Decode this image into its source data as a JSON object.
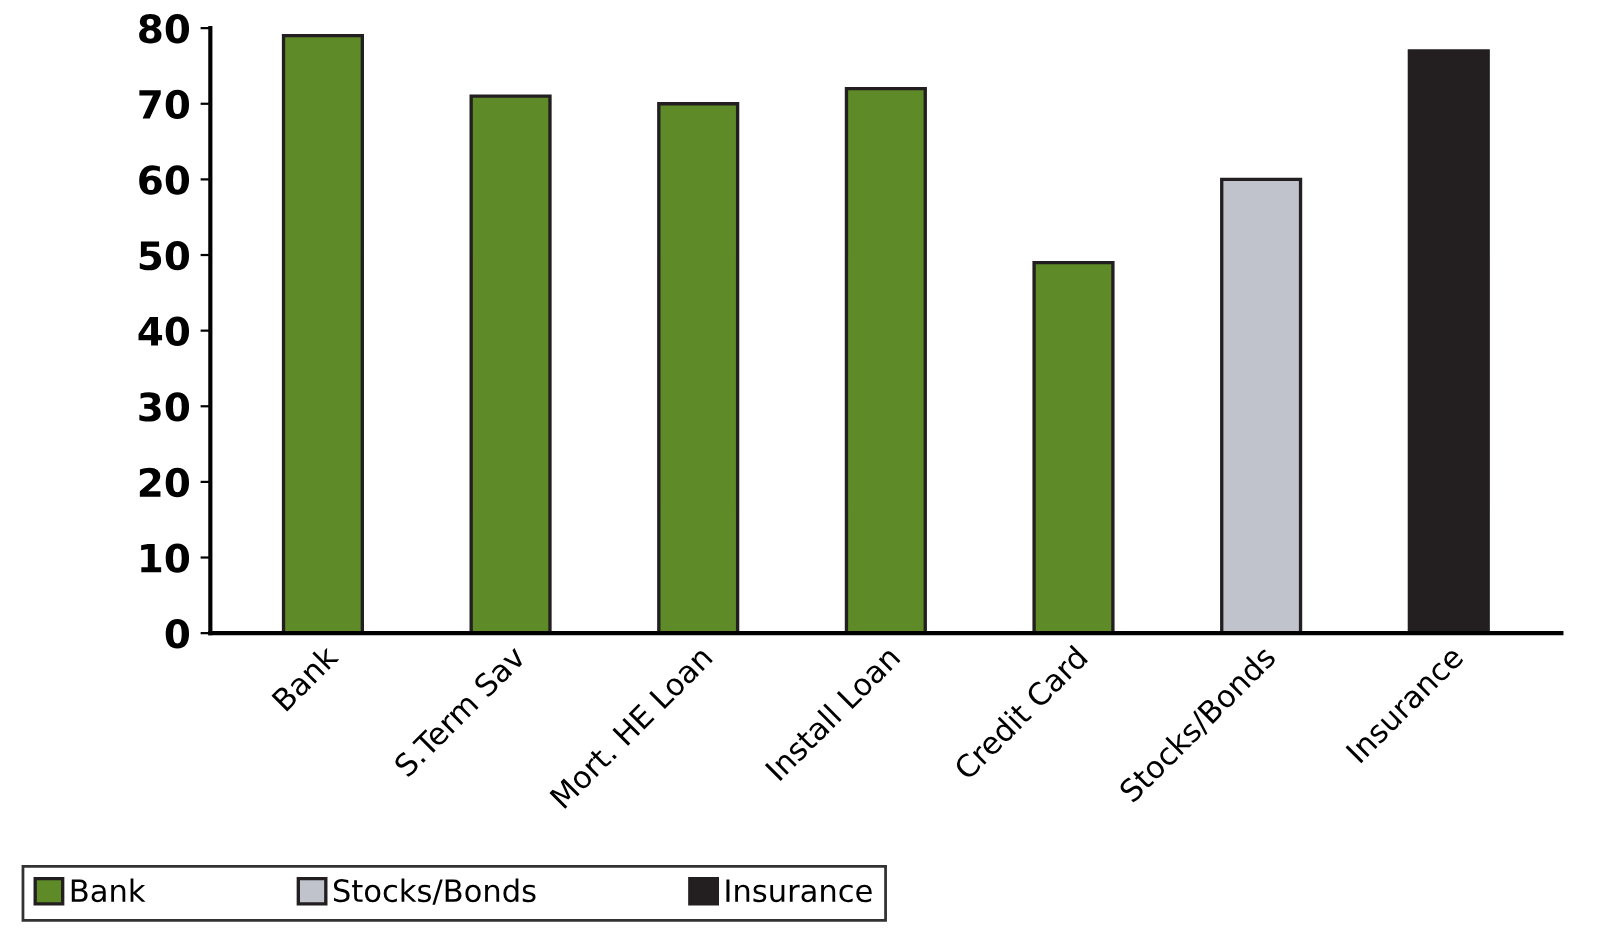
{
  "chart_data": {
    "type": "bar",
    "categories": [
      "Bank",
      "S.Term Sav",
      "Mort. HE Loan",
      "Install Loan",
      "Credit Card",
      "Stocks/Bonds",
      "Insurance"
    ],
    "series": [
      {
        "name": "Bank",
        "color": "#5e8a28",
        "values": [
          79,
          71,
          70,
          72,
          49,
          null,
          null
        ]
      },
      {
        "name": "Stocks/Bonds",
        "color": "#c0c3cb",
        "values": [
          null,
          null,
          null,
          null,
          null,
          60,
          null
        ]
      },
      {
        "name": "Insurance",
        "color": "#231f20",
        "values": [
          null,
          null,
          null,
          null,
          null,
          null,
          77
        ]
      }
    ],
    "ylim": [
      0,
      80
    ],
    "yticks": [
      0,
      10,
      20,
      30,
      40,
      50,
      60,
      70,
      80
    ],
    "grid": false,
    "legend": "bottom"
  }
}
